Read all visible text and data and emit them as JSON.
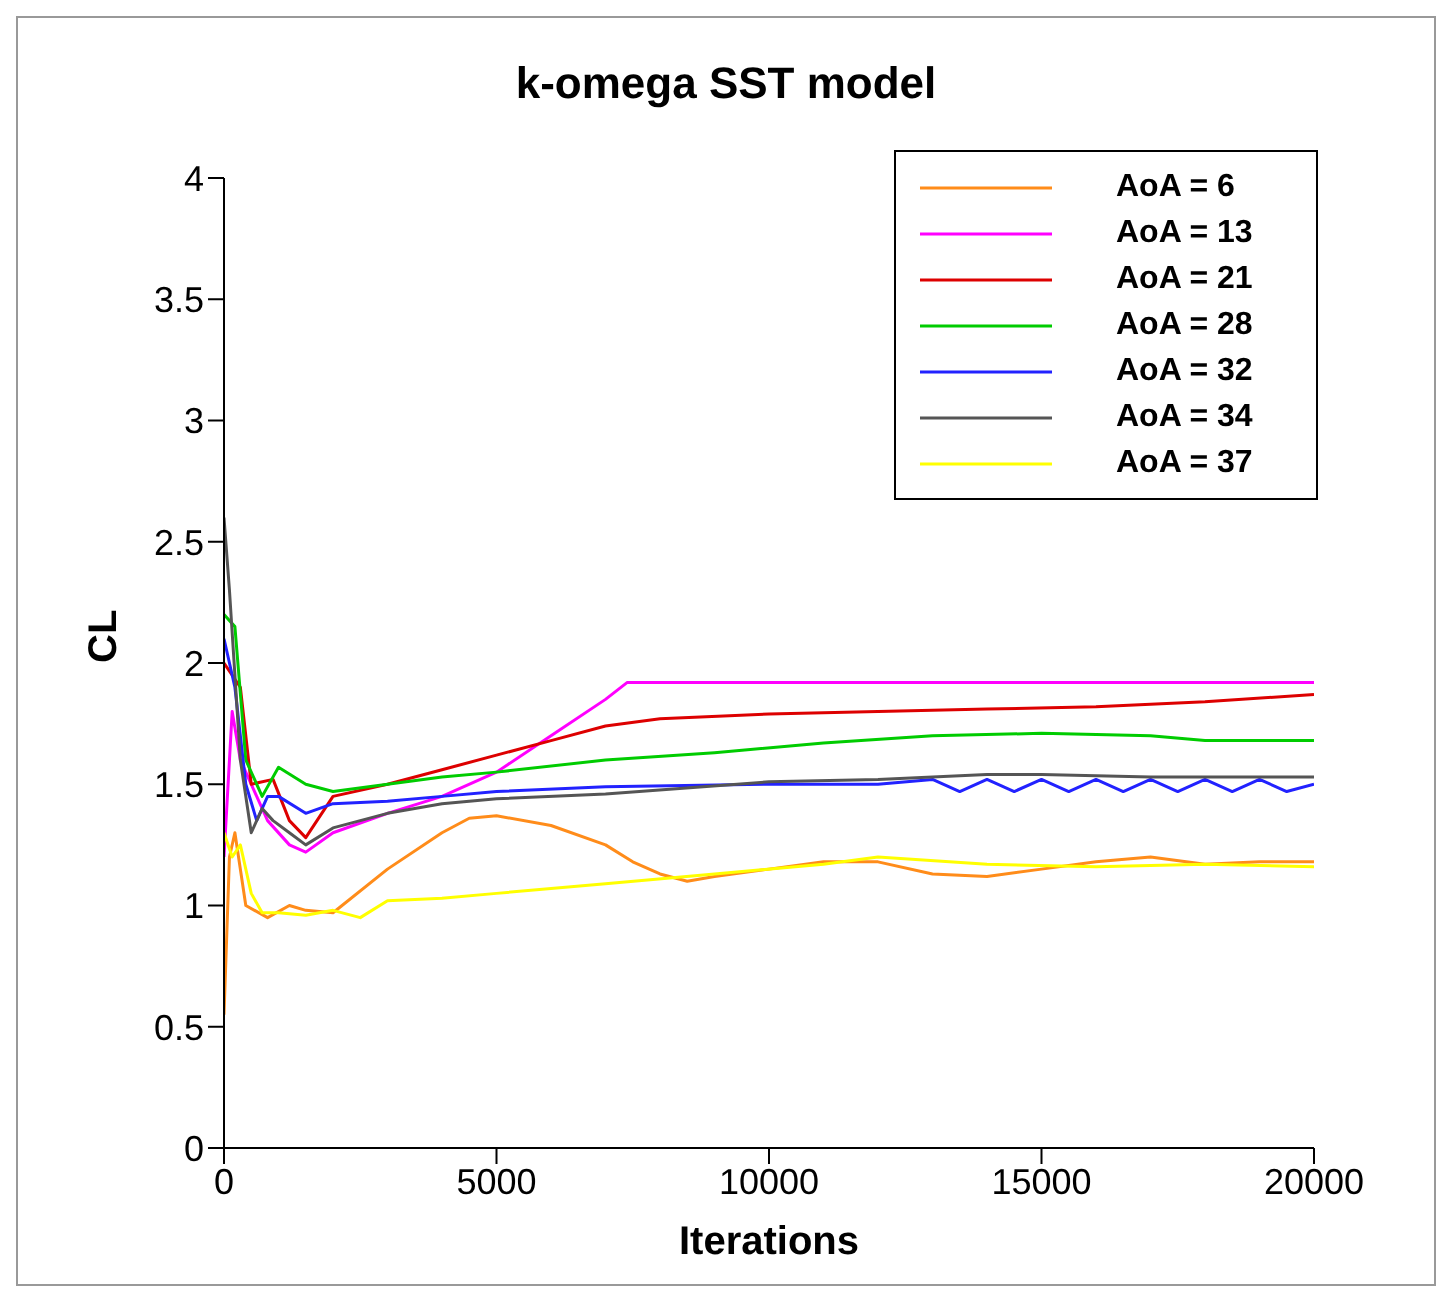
{
  "chart_data": {
    "type": "line",
    "title": "k-omega SST model",
    "xlabel": "Iterations",
    "ylabel": "CL",
    "xlim": [
      0,
      20000
    ],
    "xticks": [
      0,
      5000,
      10000,
      15000,
      20000
    ],
    "ylim": [
      0,
      4
    ],
    "yticks": [
      0,
      0.5,
      1,
      1.5,
      2,
      2.5,
      3,
      3.5,
      4
    ],
    "grid": false,
    "legend": "top right",
    "marker": "none",
    "line_style": "solid",
    "series": [
      {
        "name": "AoA = 6",
        "color": "#ff8c1a",
        "x": [
          0,
          100,
          200,
          400,
          800,
          1200,
          1500,
          2000,
          3000,
          4000,
          4500,
          5000,
          6000,
          7000,
          7500,
          8000,
          8500,
          9000,
          10000,
          11000,
          12000,
          13000,
          14000,
          15000,
          16000,
          17000,
          18000,
          19000,
          20000
        ],
        "values": [
          0.55,
          1.2,
          1.3,
          1.0,
          0.95,
          1.0,
          0.98,
          0.97,
          1.15,
          1.3,
          1.36,
          1.37,
          1.33,
          1.25,
          1.18,
          1.13,
          1.1,
          1.12,
          1.15,
          1.18,
          1.18,
          1.13,
          1.12,
          1.15,
          1.18,
          1.2,
          1.17,
          1.18,
          1.18
        ]
      },
      {
        "name": "AoA = 13",
        "color": "#ff00ff",
        "x": [
          0,
          150,
          300,
          800,
          1200,
          1500,
          2000,
          3000,
          4000,
          5000,
          6000,
          7000,
          7400,
          12000,
          20000
        ],
        "values": [
          1.2,
          1.8,
          1.6,
          1.35,
          1.25,
          1.22,
          1.3,
          1.38,
          1.45,
          1.55,
          1.7,
          1.85,
          1.92,
          1.92,
          1.92
        ]
      },
      {
        "name": "AoA = 21",
        "color": "#dd0000",
        "x": [
          0,
          300,
          500,
          900,
          1200,
          1500,
          2000,
          3000,
          4000,
          5000,
          6000,
          7000,
          8000,
          10000,
          12000,
          14000,
          16000,
          18000,
          20000
        ],
        "values": [
          2.0,
          1.9,
          1.5,
          1.52,
          1.35,
          1.28,
          1.45,
          1.5,
          1.56,
          1.62,
          1.68,
          1.74,
          1.77,
          1.79,
          1.8,
          1.81,
          1.82,
          1.84,
          1.87
        ]
      },
      {
        "name": "AoA = 28",
        "color": "#00cc00",
        "x": [
          0,
          200,
          400,
          700,
          1000,
          1500,
          2000,
          3000,
          4000,
          5000,
          7000,
          9000,
          11000,
          13000,
          15000,
          17000,
          18000,
          20000
        ],
        "values": [
          2.2,
          2.15,
          1.6,
          1.45,
          1.57,
          1.5,
          1.47,
          1.5,
          1.53,
          1.55,
          1.6,
          1.63,
          1.67,
          1.7,
          1.71,
          1.7,
          1.68,
          1.68
        ]
      },
      {
        "name": "AoA = 32",
        "color": "#2222ff",
        "x": [
          0,
          200,
          400,
          600,
          800,
          1000,
          1500,
          2000,
          3000,
          4000,
          5000,
          7000,
          10000,
          12000,
          13000,
          13500,
          14000,
          14500,
          15000,
          15500,
          16000,
          16500,
          17000,
          17500,
          18000,
          18500,
          19000,
          19500,
          20000
        ],
        "values": [
          2.1,
          1.9,
          1.5,
          1.35,
          1.45,
          1.45,
          1.38,
          1.42,
          1.43,
          1.45,
          1.47,
          1.49,
          1.5,
          1.5,
          1.52,
          1.47,
          1.52,
          1.47,
          1.52,
          1.47,
          1.52,
          1.47,
          1.52,
          1.47,
          1.52,
          1.47,
          1.52,
          1.47,
          1.5
        ]
      },
      {
        "name": "AoA = 34",
        "color": "#555555",
        "x": [
          0,
          100,
          300,
          500,
          700,
          900,
          1200,
          1500,
          2000,
          3000,
          4000,
          5000,
          7000,
          10000,
          12000,
          14000,
          15000,
          17000,
          20000
        ],
        "values": [
          2.6,
          2.3,
          1.6,
          1.3,
          1.4,
          1.35,
          1.3,
          1.25,
          1.32,
          1.38,
          1.42,
          1.44,
          1.46,
          1.51,
          1.52,
          1.54,
          1.54,
          1.53,
          1.53
        ]
      },
      {
        "name": "AoA = 37",
        "color": "#ffff00",
        "x": [
          0,
          150,
          300,
          500,
          700,
          1000,
          1500,
          2000,
          2500,
          3000,
          4000,
          5000,
          7000,
          9000,
          11000,
          12000,
          14000,
          16000,
          18000,
          20000
        ],
        "values": [
          1.3,
          1.2,
          1.25,
          1.05,
          0.97,
          0.97,
          0.96,
          0.98,
          0.95,
          1.02,
          1.03,
          1.05,
          1.09,
          1.13,
          1.17,
          1.2,
          1.17,
          1.16,
          1.17,
          1.16
        ]
      }
    ]
  }
}
